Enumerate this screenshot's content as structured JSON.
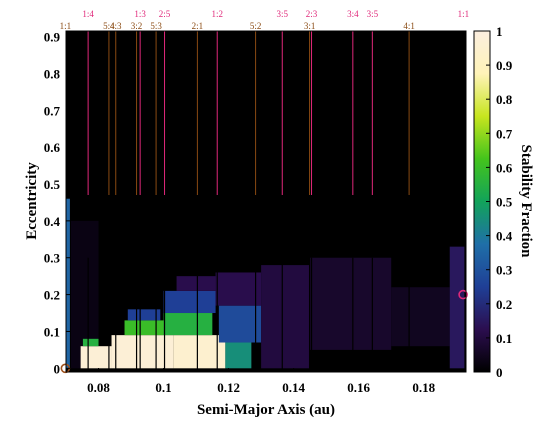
{
  "chart_data": {
    "type": "heatmap",
    "xlabel": "Semi-Major Axis (au)",
    "ylabel": "Eccentricity",
    "colorbar_label": "Stability Fraction",
    "xlim": [
      0.07,
      0.193
    ],
    "ylim": [
      -0.01,
      0.915
    ],
    "x_ticks": [
      {
        "value": 0.08,
        "label": "0.08"
      },
      {
        "value": 0.1,
        "label": "0.1"
      },
      {
        "value": 0.12,
        "label": "0.12"
      },
      {
        "value": 0.14,
        "label": "0.14"
      },
      {
        "value": 0.16,
        "label": "0.16"
      },
      {
        "value": 0.18,
        "label": "0.18"
      }
    ],
    "y_ticks": [
      {
        "value": 0,
        "label": "0"
      },
      {
        "value": 0.1,
        "label": "0.1"
      },
      {
        "value": 0.2,
        "label": "0.2"
      },
      {
        "value": 0.3,
        "label": "0.3"
      },
      {
        "value": 0.4,
        "label": "0.4"
      },
      {
        "value": 0.5,
        "label": "0.5"
      },
      {
        "value": 0.6,
        "label": "0.6"
      },
      {
        "value": 0.7,
        "label": "0.7"
      },
      {
        "value": 0.8,
        "label": "0.8"
      },
      {
        "value": 0.9,
        "label": "0.9"
      }
    ],
    "colorbar": {
      "range": [
        0,
        1
      ],
      "colormap_stops": [
        "#000000",
        "#2b0e4f",
        "#1f3f96",
        "#1f6fa8",
        "#12a35a",
        "#44c41c",
        "#c7e51f",
        "#fff3b8",
        "#fbeedf"
      ],
      "ticks": [
        {
          "value": 0,
          "label": "0"
        },
        {
          "value": 0.1,
          "label": "0.1"
        },
        {
          "value": 0.2,
          "label": "0.2"
        },
        {
          "value": 0.3,
          "label": "0.3"
        },
        {
          "value": 0.4,
          "label": "0.4"
        },
        {
          "value": 0.5,
          "label": "0.5"
        },
        {
          "value": 0.6,
          "label": "0.6"
        },
        {
          "value": 0.7,
          "label": "0.7"
        },
        {
          "value": 0.8,
          "label": "0.8"
        },
        {
          "value": 0.9,
          "label": "0.9"
        },
        {
          "value": 1,
          "label": "1"
        }
      ]
    },
    "resonances_top": [
      {
        "label": "1:4",
        "a": 0.0768,
        "color": "#e0287a",
        "line": true
      },
      {
        "label": "1:3",
        "a": 0.0928,
        "color": "#e0287a",
        "line": true
      },
      {
        "label": "2:5",
        "a": 0.1003,
        "color": "#e0287a",
        "line": true
      },
      {
        "label": "1:2",
        "a": 0.1165,
        "color": "#e0287a",
        "line": true
      },
      {
        "label": "3:5",
        "a": 0.1365,
        "color": "#e0287a",
        "line": true
      },
      {
        "label": "2:3",
        "a": 0.1455,
        "color": "#e0287a",
        "line": true
      },
      {
        "label": "3:4",
        "a": 0.1582,
        "color": "#e0287a",
        "line": true
      },
      {
        "label": "3:5",
        "a": 0.1642,
        "color": "#e0287a",
        "line": true
      },
      {
        "label": "1:1",
        "a": 0.1922,
        "color": "#e0287a",
        "line": false
      }
    ],
    "resonances_bottom": [
      {
        "label": "1:1",
        "a": 0.0698,
        "color": "#8a4a12",
        "line": true
      },
      {
        "label": "5:4",
        "a": 0.0832,
        "color": "#8a4a12",
        "line": true
      },
      {
        "label": "4:3",
        "a": 0.0853,
        "color": "#8a4a12",
        "line": true
      },
      {
        "label": "3:2",
        "a": 0.0917,
        "color": "#8a4a12",
        "line": true
      },
      {
        "label": "5:3",
        "a": 0.0977,
        "color": "#8a4a12",
        "line": true
      },
      {
        "label": "2:1",
        "a": 0.1104,
        "color": "#8a4a12",
        "line": true
      },
      {
        "label": "5:2",
        "a": 0.1283,
        "color": "#8a4a12",
        "line": true
      },
      {
        "label": "3:1",
        "a": 0.1449,
        "color": "#8a4a12",
        "line": true
      },
      {
        "label": "4:1",
        "a": 0.1755,
        "color": "#8a4a12",
        "line": true
      }
    ],
    "planets": [
      {
        "a": 0.0698,
        "e": 0.0,
        "color": "#a0521d"
      },
      {
        "a": 0.1921,
        "e": 0.2,
        "color": "#e0287a"
      }
    ],
    "stability_regions": [
      {
        "a": [
          0.0715,
          0.08
        ],
        "e": [
          0.0,
          0.4
        ],
        "value": 0.03
      },
      {
        "a": [
          0.07,
          0.0712
        ],
        "e": [
          0.0,
          0.46
        ],
        "value": 0.35
      },
      {
        "a": [
          0.0745,
          0.084
        ],
        "e": [
          0.0,
          0.06
        ],
        "value": 0.97
      },
      {
        "a": [
          0.0752,
          0.08
        ],
        "e": [
          0.06,
          0.08
        ],
        "value": 0.55
      },
      {
        "a": [
          0.084,
          0.103
        ],
        "e": [
          0.0,
          0.09
        ],
        "value": 0.97
      },
      {
        "a": [
          0.088,
          0.1
        ],
        "e": [
          0.09,
          0.13
        ],
        "value": 0.6
      },
      {
        "a": [
          0.089,
          0.099
        ],
        "e": [
          0.13,
          0.16
        ],
        "value": 0.25
      },
      {
        "a": [
          0.103,
          0.119
        ],
        "e": [
          0.0,
          0.09
        ],
        "value": 0.95
      },
      {
        "a": [
          0.1,
          0.115
        ],
        "e": [
          0.09,
          0.15
        ],
        "value": 0.55
      },
      {
        "a": [
          0.1,
          0.116
        ],
        "e": [
          0.15,
          0.21
        ],
        "value": 0.25
      },
      {
        "a": [
          0.104,
          0.116
        ],
        "e": [
          0.21,
          0.25
        ],
        "value": 0.12
      },
      {
        "a": [
          0.119,
          0.127
        ],
        "e": [
          0.0,
          0.07
        ],
        "value": 0.45
      },
      {
        "a": [
          0.117,
          0.13
        ],
        "e": [
          0.07,
          0.17
        ],
        "value": 0.28
      },
      {
        "a": [
          0.116,
          0.13
        ],
        "e": [
          0.17,
          0.26
        ],
        "value": 0.12
      },
      {
        "a": [
          0.13,
          0.145
        ],
        "e": [
          0.0,
          0.28
        ],
        "value": 0.1
      },
      {
        "a": [
          0.145,
          0.17
        ],
        "e": [
          0.05,
          0.3
        ],
        "value": 0.07
      },
      {
        "a": [
          0.17,
          0.188
        ],
        "e": [
          0.06,
          0.22
        ],
        "value": 0.05
      },
      {
        "a": [
          0.188,
          0.1925
        ],
        "e": [
          0.0,
          0.33
        ],
        "value": 0.15
      }
    ]
  }
}
